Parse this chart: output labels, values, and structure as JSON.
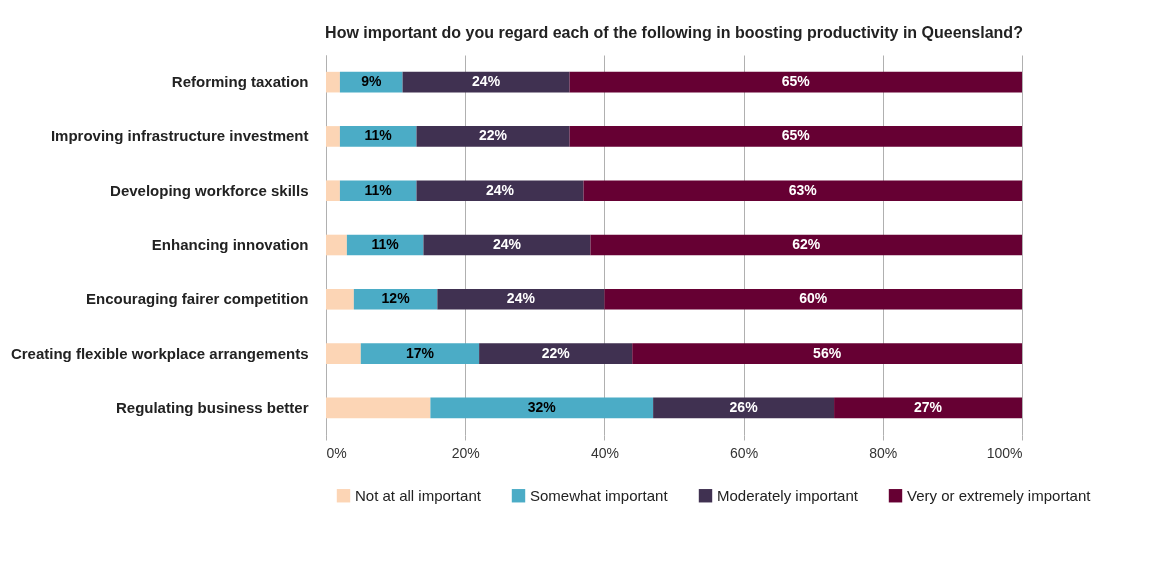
{
  "chart_data": {
    "type": "bar",
    "orientation": "horizontal",
    "stacked": true,
    "title": "How important do you regard each of the following in boosting productivity in Queensland?",
    "categories": [
      "Reforming taxation",
      "Improving infrastructure investment",
      "Developing workforce skills",
      "Enhancing innovation",
      "Encouraging fairer competition",
      "Creating flexible workplace arrangements",
      "Regulating business better"
    ],
    "series": [
      {
        "name": "Not at all important",
        "color": "#fcd5b5",
        "values": [
          2,
          2,
          2,
          3,
          4,
          5,
          15
        ],
        "value_labels": [
          null,
          null,
          null,
          null,
          null,
          null,
          null
        ]
      },
      {
        "name": "Somewhat important",
        "color": "#4bacc6",
        "values": [
          9,
          11,
          11,
          11,
          12,
          17,
          32
        ],
        "value_labels": [
          "9%",
          "11%",
          "11%",
          "11%",
          "12%",
          "17%",
          "32%"
        ]
      },
      {
        "name": "Moderately important",
        "color": "#403151",
        "values": [
          24,
          22,
          24,
          24,
          24,
          22,
          26
        ],
        "value_labels": [
          "24%",
          "22%",
          "24%",
          "24%",
          "24%",
          "22%",
          "26%"
        ]
      },
      {
        "name": "Very or extremely important",
        "color": "#660033",
        "values": [
          65,
          65,
          63,
          62,
          60,
          56,
          27
        ],
        "value_labels": [
          "65%",
          "65%",
          "63%",
          "62%",
          "60%",
          "56%",
          "27%"
        ]
      }
    ],
    "xlim": [
      0,
      100
    ],
    "xticks": [
      {
        "value": 0,
        "label": "0%"
      },
      {
        "value": 20,
        "label": "20%"
      },
      {
        "value": 40,
        "label": "40%"
      },
      {
        "value": 60,
        "label": "60%"
      },
      {
        "value": 80,
        "label": "80%"
      },
      {
        "value": 100,
        "label": "100%"
      }
    ],
    "grid": "x",
    "legend": "bottom"
  }
}
